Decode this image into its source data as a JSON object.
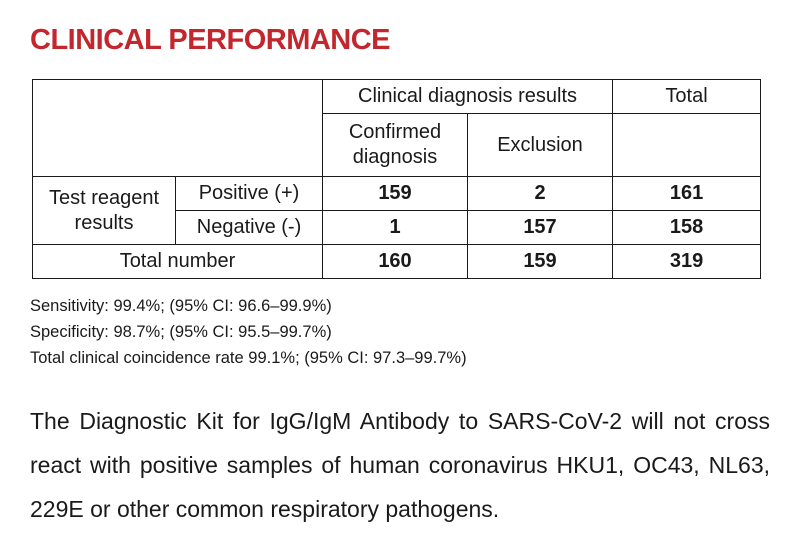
{
  "title": "CLINICAL PERFORMANCE",
  "colors": {
    "title": "#c1272d",
    "text": "#1a1a1a",
    "border": "#1a1a1a",
    "background": "#ffffff"
  },
  "table": {
    "header": {
      "clinical_group": "Clinical diagnosis results",
      "total": "Total",
      "confirmed": "Confirmed diagnosis",
      "exclusion": "Exclusion"
    },
    "row_group": "Test reagent results",
    "rows": [
      {
        "label": "Positive (+)",
        "confirmed": "159",
        "exclusion": "2",
        "total": "161"
      },
      {
        "label": "Negative (-)",
        "confirmed": "1",
        "exclusion": "157",
        "total": "158"
      }
    ],
    "total_row": {
      "label": "Total number",
      "confirmed": "160",
      "exclusion": "159",
      "total": "319"
    }
  },
  "stats": [
    "Sensitivity: 99.4%; (95% CI: 96.6–99.9%)",
    "Specificity: 98.7%; (95% CI: 95.5–99.7%)",
    "Total clinical coincidence rate 99.1%; (95% CI: 97.3–99.7%)"
  ],
  "note": "The Diagnostic Kit for IgG/IgM Antibody to SARS-CoV-2 will not cross react with positive samples of human coronavirus HKU1, OC43, NL63, 229E or other common respiratory pathogens."
}
